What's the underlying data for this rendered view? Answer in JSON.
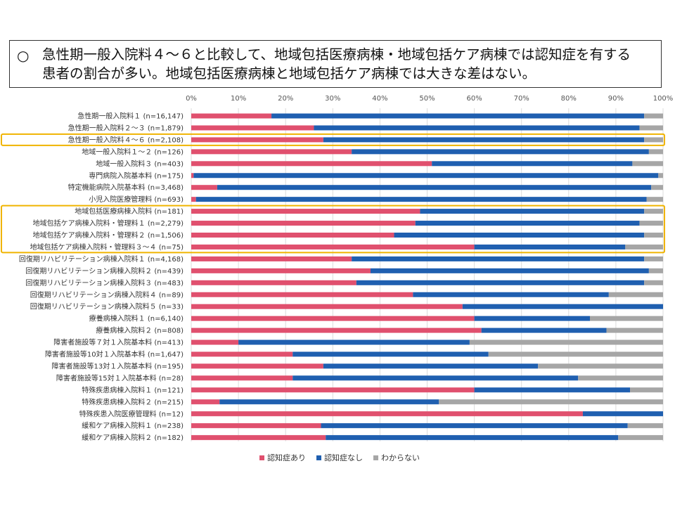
{
  "headline": {
    "marker": "○",
    "line1": "急性期一般入院料４～６と比較して、地域包括医療病棟・地域包括ケア病棟では認知症を有する",
    "line2": "患者の割合が多い。地域包括医療病棟と地域包括ケア病棟では大きな差はない。"
  },
  "colors": {
    "ari": "#e0506e",
    "nashi": "#1f5fb0",
    "wakaranai": "#a6a6a6",
    "highlight": "#f0b400"
  },
  "chart_data": {
    "type": "bar",
    "orientation": "horizontal",
    "stacked": true,
    "percent_axis": true,
    "x_ticks": [
      "0%",
      "10%",
      "20%",
      "30%",
      "40%",
      "50%",
      "60%",
      "70%",
      "80%",
      "90%",
      "100%"
    ],
    "xlim": [
      0,
      100
    ],
    "grid": true,
    "legend_position": "bottom",
    "categories": [
      "急性期一般入院料１ (n=16,147)",
      "急性期一般入院料２～３ (n=1,879)",
      "急性期一般入院料４～６ (n=2,108)",
      "地域一般入院料１～２ (n=126)",
      "地域一般入院料３ (n=403)",
      "専門病院入院基本料 (n=175)",
      "特定機能病院入院基本料 (n=3,468)",
      "小児入院医療管理料 (n=693)",
      "地域包括医療病棟入院料 (n=181)",
      "地域包括ケア病棟入院料・管理料１ (n=2,279)",
      "地域包括ケア病棟入院料・管理料２ (n=1,506)",
      "地域包括ケア病棟入院料・管理料３～４ (n=75)",
      "回復期リハビリテーション病棟入院料１ (n=4,168)",
      "回復期リハビリテーション病棟入院料２ (n=439)",
      "回復期リハビリテーション病棟入院料３ (n=483)",
      "回復期リハビリテーション病棟入院料４ (n=89)",
      "回復期リハビリテーション病棟入院料５ (n=33)",
      "療養病棟入院料１ (n=6,140)",
      "療養病棟入院料２ (n=808)",
      "障害者施設等７対１入院基本料 (n=413)",
      "障害者施設等10対１入院基本料 (n=1,647)",
      "障害者施設等13対１入院基本料 (n=195)",
      "障害者施設等15対１入院基本料 (n=28)",
      "特殊疾患病棟入院料１ (n=121)",
      "特殊疾患病棟入院料２ (n=215)",
      "特殊疾患入院医療管理料 (n=12)",
      "緩和ケア病棟入院料１ (n=238)",
      "緩和ケア病棟入院料２ (n=182)"
    ],
    "series": [
      {
        "name": "認知症あり",
        "values": [
          17,
          26,
          28,
          34,
          51,
          0.5,
          5.5,
          1,
          48.5,
          47.5,
          43,
          60,
          34,
          38,
          35,
          47,
          57.5,
          60,
          61.5,
          10,
          21.5,
          28,
          21.5,
          60,
          6,
          83,
          27.5,
          28.5
        ]
      },
      {
        "name": "認知症なし",
        "values": [
          79,
          69,
          68,
          63,
          42.5,
          98.5,
          92,
          95.5,
          47.5,
          47.5,
          53,
          32,
          62,
          59,
          61,
          41.5,
          42.5,
          24.5,
          26.5,
          49,
          41.5,
          45.5,
          60.5,
          33,
          46.5,
          17,
          65,
          62
        ]
      },
      {
        "name": "わからない",
        "values": [
          4,
          5,
          4,
          3,
          6.5,
          1,
          2.5,
          3.5,
          4,
          5,
          4,
          8,
          4,
          3,
          4,
          11.5,
          0,
          15.5,
          12,
          41,
          37,
          26.5,
          18,
          7,
          47.5,
          0,
          7.5,
          9.5
        ]
      }
    ],
    "highlight_groups": [
      [
        2,
        2
      ],
      [
        8,
        11
      ]
    ]
  }
}
